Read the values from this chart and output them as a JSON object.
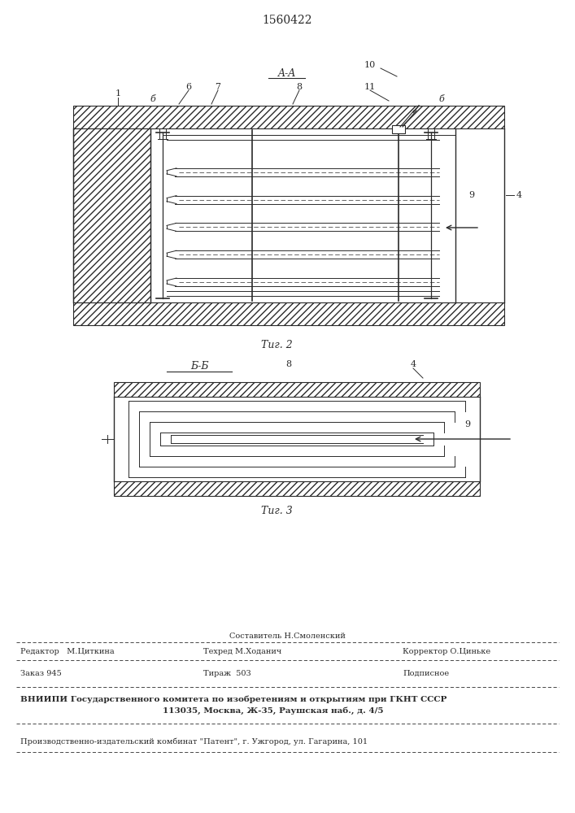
{
  "title": "1560422",
  "fig2_label": "Τиг. 2",
  "fig3_label": "Τиг. 3",
  "section_aa": "A-A",
  "section_bb": "Б-Б",
  "bg_color": "#ffffff",
  "line_color": "#2a2a2a",
  "footer": {
    "compositor_label": "Составитель Н.Смоленский",
    "editor_label": "Редактор   М.Циткина",
    "techred_label": "Техред М.Ходанич",
    "corrector_label": "Корректор О.Циньке",
    "order_label": "Заказ 945",
    "tiraz_label": "Тираж  503",
    "podpisnoe_label": "Подписное",
    "vnipi_line1": "ВНИИПИ Государственного комитета по изобретениям и открытиям при ГКНТ СССР",
    "vnipi_line2": "113035, Москва, Ж-35, Раушская наб., д. 4/5",
    "factory_line": "Производственно-издательский комбинат \"Патент\", г. Ужгород, ул. Гагарина, 101"
  }
}
